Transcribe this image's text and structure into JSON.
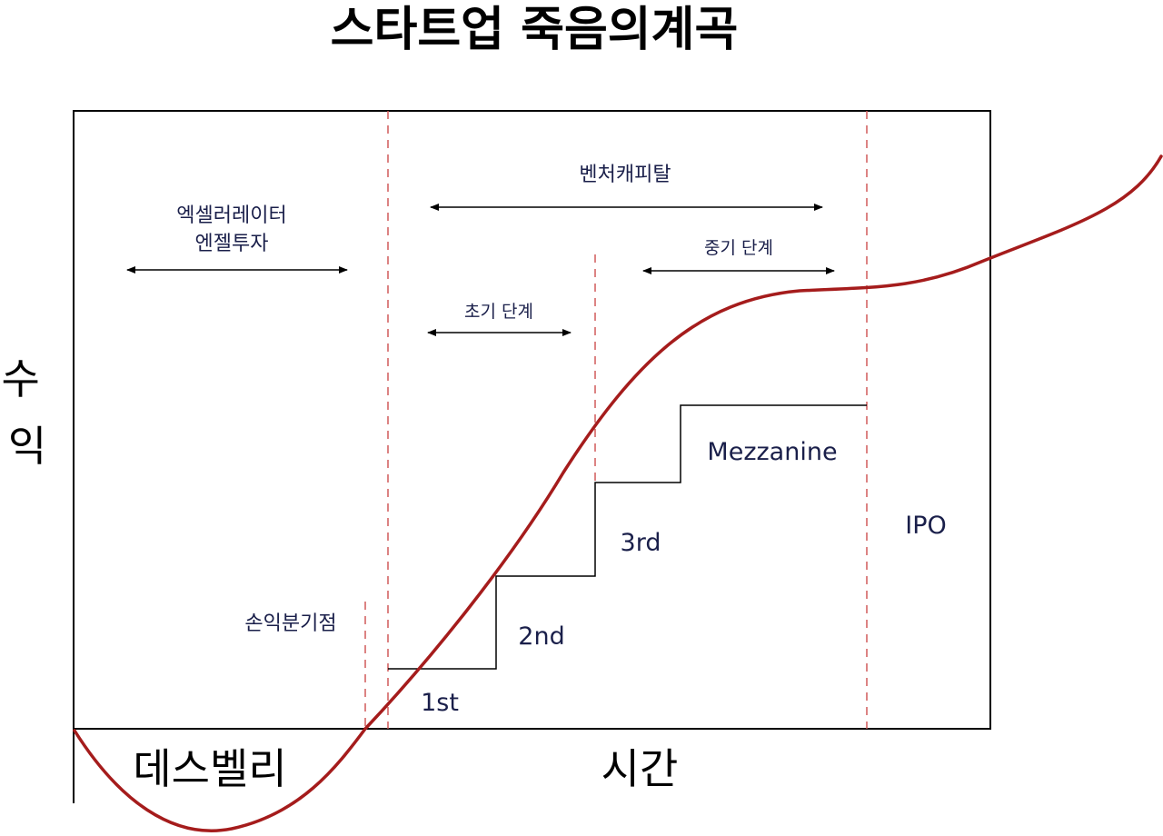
{
  "title": "스타트업 죽음의계곡",
  "axes": {
    "y_label": "수\n익",
    "x_label": "시간"
  },
  "regions": {
    "death_valley": "데스벨리",
    "break_even": "손익분기점"
  },
  "investors": {
    "accelerator_angel_line1": "엑셀러레이터",
    "accelerator_angel_line2": "엔젤투자",
    "venture_capital": "벤처캐피탈",
    "early_stage": "초기 단계",
    "mid_stage": "중기 단계"
  },
  "stages": [
    "1st",
    "2nd",
    "3rd",
    "Mezzanine",
    "IPO"
  ],
  "colors": {
    "curve": "#a51c1c",
    "divider": "#d05a5a",
    "text_navy": "#1a1f4a",
    "frame": "#000000"
  }
}
